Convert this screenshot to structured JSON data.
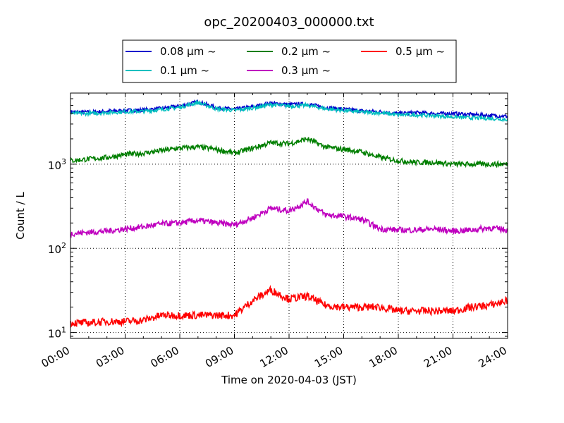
{
  "chart_data": {
    "type": "line",
    "title": "opc_20200403_000000.txt",
    "xlabel": "Time on 2020-04-03 (JST)",
    "ylabel": "Count / L",
    "xlim": [
      "00:00",
      "24:00"
    ],
    "ylim": [
      8.5,
      7000
    ],
    "yscale": "log",
    "grid": true,
    "legend_position": "top-center",
    "xticks": [
      "00:00",
      "03:00",
      "06:00",
      "09:00",
      "12:00",
      "15:00",
      "18:00",
      "21:00",
      "24:00"
    ],
    "yticks": [
      {
        "value": 10,
        "base": "10",
        "exp": "1"
      },
      {
        "value": 100,
        "base": "10",
        "exp": "2"
      },
      {
        "value": 1000,
        "base": "10",
        "exp": "3"
      }
    ],
    "x": [
      "00:00",
      "01:00",
      "02:00",
      "03:00",
      "04:00",
      "05:00",
      "06:00",
      "07:00",
      "08:00",
      "09:00",
      "10:00",
      "11:00",
      "12:00",
      "13:00",
      "14:00",
      "15:00",
      "16:00",
      "17:00",
      "18:00",
      "19:00",
      "20:00",
      "21:00",
      "22:00",
      "23:00",
      "24:00"
    ],
    "series": [
      {
        "name": "0.08 μm ~",
        "color": "#0000cc",
        "values": [
          4200,
          4150,
          4250,
          4350,
          4400,
          4600,
          4900,
          5500,
          4700,
          4500,
          4800,
          5300,
          5100,
          5200,
          4700,
          4500,
          4300,
          4200,
          4000,
          4100,
          4000,
          4000,
          3900,
          3800,
          3700
        ]
      },
      {
        "name": "0.1 μm ~",
        "color": "#00bfbf",
        "values": [
          4000,
          4000,
          4100,
          4200,
          4250,
          4450,
          4750,
          5400,
          4550,
          4350,
          4650,
          5100,
          4900,
          5000,
          4550,
          4350,
          4150,
          4050,
          3850,
          3850,
          3750,
          3650,
          3550,
          3500,
          3400
        ]
      },
      {
        "name": "0.2 μm ~",
        "color": "#007f00",
        "values": [
          1100,
          1150,
          1200,
          1300,
          1350,
          1450,
          1550,
          1600,
          1500,
          1350,
          1550,
          1800,
          1750,
          2000,
          1600,
          1500,
          1400,
          1200,
          1100,
          1050,
          1050,
          1000,
          1000,
          1000,
          1000
        ]
      },
      {
        "name": "0.3 μm ~",
        "color": "#bf00bf",
        "values": [
          150,
          155,
          160,
          170,
          180,
          195,
          200,
          215,
          200,
          190,
          230,
          300,
          280,
          360,
          250,
          240,
          220,
          170,
          165,
          165,
          170,
          160,
          165,
          175,
          165
        ]
      },
      {
        "name": "0.5 μm ~",
        "color": "#ff0000",
        "values": [
          13,
          13,
          13.5,
          13.5,
          14,
          16,
          16,
          16,
          16,
          16,
          24,
          32,
          25,
          27,
          21,
          20,
          20,
          20,
          18,
          18,
          18,
          18,
          20,
          21,
          24
        ]
      }
    ]
  }
}
